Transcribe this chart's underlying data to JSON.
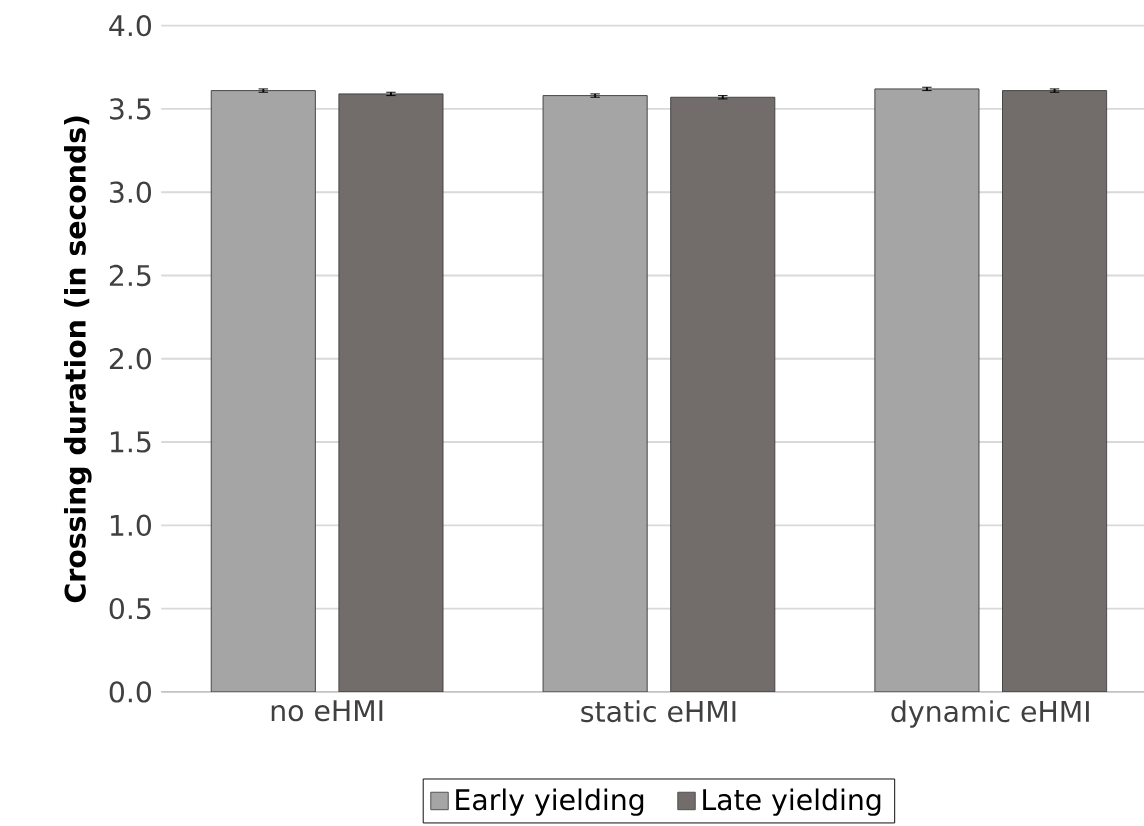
{
  "chart_data": {
    "type": "bar",
    "ylabel": "Crossing duration (in seconds)",
    "categories": [
      "no eHMI",
      "static eHMI",
      "dynamic eHMI"
    ],
    "series": [
      {
        "name": "Early yielding",
        "color": "#a5a5a5",
        "values": [
          3.61,
          3.58,
          3.62
        ],
        "errors": [
          0.01,
          0.01,
          0.01
        ]
      },
      {
        "name": "Late yielding",
        "color": "#726c6b",
        "values": [
          3.59,
          3.57,
          3.61
        ],
        "errors": [
          0.01,
          0.01,
          0.01
        ]
      }
    ],
    "ylim": [
      0,
      4
    ],
    "yticks": [
      {
        "value": 0,
        "label": "0.0"
      },
      {
        "value": 0.5,
        "label": "0.5"
      },
      {
        "value": 1,
        "label": "1.0"
      },
      {
        "value": 1.5,
        "label": "1.5"
      },
      {
        "value": 2,
        "label": "2.0"
      },
      {
        "value": 2.5,
        "label": "2.5"
      },
      {
        "value": 3,
        "label": "3.0"
      },
      {
        "value": 3.5,
        "label": "3.5"
      },
      {
        "value": 4,
        "label": "4.0"
      }
    ],
    "grid": "y",
    "legend": "bottom"
  }
}
